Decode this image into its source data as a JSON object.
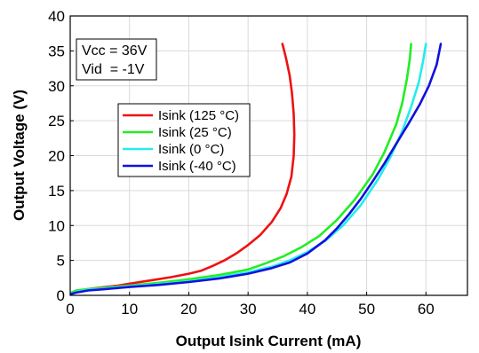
{
  "chart_data": {
    "type": "line",
    "title": "",
    "xlabel": "Output Isink Current (mA)",
    "ylabel": "Output Voltage (V)",
    "xlim": [
      0,
      67
    ],
    "ylim": [
      0,
      40
    ],
    "x_ticks": [
      0,
      10,
      20,
      30,
      40,
      50,
      60
    ],
    "y_ticks": [
      0,
      5,
      10,
      15,
      20,
      25,
      30,
      35,
      40
    ],
    "grid": true,
    "legend_position": "upper-left",
    "annotation_lines": [
      "Vcc = 36V",
      "Vid  = -1V"
    ],
    "series": [
      {
        "name": "Isink (125 °C)",
        "color": "#ee1111",
        "points": [
          [
            0.2,
            0.4
          ],
          [
            1,
            0.6
          ],
          [
            3,
            0.9
          ],
          [
            5,
            1.1
          ],
          [
            8,
            1.4
          ],
          [
            11,
            1.8
          ],
          [
            14,
            2.2
          ],
          [
            17,
            2.6
          ],
          [
            20,
            3.1
          ],
          [
            22,
            3.5
          ],
          [
            24,
            4.2
          ],
          [
            26,
            5.0
          ],
          [
            28,
            6.0
          ],
          [
            30,
            7.2
          ],
          [
            32,
            8.6
          ],
          [
            34,
            10.5
          ],
          [
            35.5,
            12.5
          ],
          [
            36.5,
            14.5
          ],
          [
            37.3,
            17.0
          ],
          [
            37.7,
            20.0
          ],
          [
            37.8,
            23.0
          ],
          [
            37.7,
            26.0
          ],
          [
            37.4,
            29.0
          ],
          [
            37.0,
            31.5
          ],
          [
            36.4,
            34.0
          ],
          [
            35.8,
            36.0
          ]
        ]
      },
      {
        "name": "Isink (25 °C)",
        "color": "#22ee22",
        "points": [
          [
            0.2,
            0.4
          ],
          [
            1,
            0.7
          ],
          [
            3,
            0.9
          ],
          [
            6,
            1.1
          ],
          [
            10,
            1.4
          ],
          [
            15,
            1.8
          ],
          [
            20,
            2.3
          ],
          [
            25,
            2.9
          ],
          [
            30,
            3.7
          ],
          [
            33,
            4.6
          ],
          [
            36,
            5.6
          ],
          [
            39,
            6.9
          ],
          [
            42,
            8.5
          ],
          [
            45,
            10.8
          ],
          [
            48,
            13.7
          ],
          [
            51,
            17.3
          ],
          [
            53,
            20.5
          ],
          [
            55,
            24.5
          ],
          [
            56,
            27.5
          ],
          [
            56.8,
            31.0
          ],
          [
            57.3,
            34.0
          ],
          [
            57.5,
            36.0
          ]
        ]
      },
      {
        "name": "Isink (0 °C)",
        "color": "#22eeee",
        "points": [
          [
            0.2,
            0.3
          ],
          [
            1,
            0.5
          ],
          [
            3,
            0.8
          ],
          [
            6,
            1.0
          ],
          [
            10,
            1.3
          ],
          [
            15,
            1.6
          ],
          [
            20,
            2.0
          ],
          [
            25,
            2.6
          ],
          [
            30,
            3.3
          ],
          [
            34,
            4.1
          ],
          [
            37,
            5.0
          ],
          [
            40,
            6.2
          ],
          [
            43,
            7.8
          ],
          [
            46,
            10.0
          ],
          [
            49,
            12.9
          ],
          [
            52,
            16.7
          ],
          [
            54,
            19.8
          ],
          [
            56,
            23.5
          ],
          [
            57.5,
            27.0
          ],
          [
            58.8,
            30.5
          ],
          [
            59.5,
            33.5
          ],
          [
            60,
            36.0
          ]
        ]
      },
      {
        "name": "Isink (-40 °C)",
        "color": "#1111dd",
        "points": [
          [
            0.2,
            0.2
          ],
          [
            1,
            0.4
          ],
          [
            3,
            0.7
          ],
          [
            6,
            0.9
          ],
          [
            10,
            1.2
          ],
          [
            15,
            1.5
          ],
          [
            20,
            1.9
          ],
          [
            25,
            2.4
          ],
          [
            30,
            3.1
          ],
          [
            34,
            3.9
          ],
          [
            37,
            4.7
          ],
          [
            40,
            6.0
          ],
          [
            43,
            7.9
          ],
          [
            45,
            9.6
          ],
          [
            47,
            11.6
          ],
          [
            49,
            13.8
          ],
          [
            51,
            16.3
          ],
          [
            53,
            18.9
          ],
          [
            55,
            21.7
          ],
          [
            57,
            24.5
          ],
          [
            59,
            27.4
          ],
          [
            60.5,
            30.0
          ],
          [
            61.8,
            33.0
          ],
          [
            62.5,
            36.0
          ]
        ]
      }
    ]
  }
}
